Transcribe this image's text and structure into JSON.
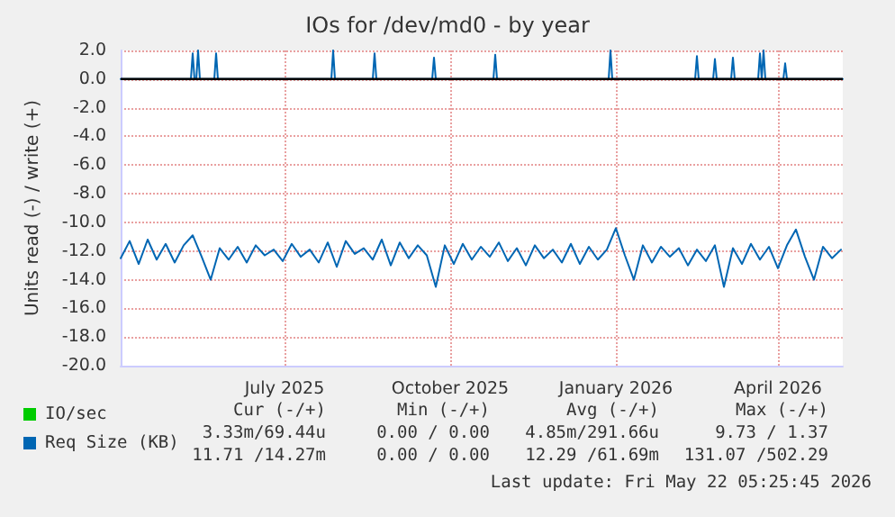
{
  "chart_data": {
    "type": "line",
    "title": "IOs for /dev/md0 - by year",
    "ylabel": "Units read (-) / write (+)",
    "xlim": [
      "2025-04-16",
      "2026-05-22"
    ],
    "xticks": [
      {
        "value": "2025-07-16",
        "label": "July 2025"
      },
      {
        "value": "2025-10-16",
        "label": "October 2025"
      },
      {
        "value": "2026-01-16",
        "label": "January 2026"
      },
      {
        "value": "2026-04-16",
        "label": "April 2026"
      }
    ],
    "ylim": [
      -20,
      2
    ],
    "yticks": [
      {
        "value": 2,
        "label": "2.0"
      },
      {
        "value": 0,
        "label": "0.0"
      },
      {
        "value": -2,
        "label": "-2.0"
      },
      {
        "value": -4,
        "label": "-4.0"
      },
      {
        "value": -6,
        "label": "-6.0"
      },
      {
        "value": -8,
        "label": "-8.0"
      },
      {
        "value": -10,
        "label": "-10.0"
      },
      {
        "value": -12,
        "label": "-12.0"
      },
      {
        "value": -14,
        "label": "-14.0"
      },
      {
        "value": -16,
        "label": "-16.0"
      },
      {
        "value": -18,
        "label": "-18.0"
      },
      {
        "value": -20,
        "label": "-20.0"
      }
    ],
    "grid": true,
    "legend": "bottom left",
    "marker": "none",
    "line_style": "solid",
    "ref_lines": [
      {
        "axis": "y",
        "value": 0,
        "color": "#000000"
      }
    ],
    "series": [
      {
        "name": "IO/sec",
        "color": "#00cc00"
      },
      {
        "name": "Req Size (KB)",
        "color": "#0066b3",
        "x": [
          "2025-04-16",
          "2025-04-21",
          "2025-04-26",
          "2025-05-01",
          "2025-05-06",
          "2025-05-11",
          "2025-05-16",
          "2025-05-21",
          "2025-05-26",
          "2025-05-31",
          "2025-06-05",
          "2025-06-10",
          "2025-06-15",
          "2025-06-20",
          "2025-06-25",
          "2025-06-30",
          "2025-07-05",
          "2025-07-10",
          "2025-07-15",
          "2025-07-20",
          "2025-07-25",
          "2025-07-30",
          "2025-08-04",
          "2025-08-09",
          "2025-08-14",
          "2025-08-19",
          "2025-08-24",
          "2025-08-29",
          "2025-09-03",
          "2025-09-08",
          "2025-09-13",
          "2025-09-18",
          "2025-09-23",
          "2025-09-28",
          "2025-10-03",
          "2025-10-08",
          "2025-10-13",
          "2025-10-18",
          "2025-10-23",
          "2025-10-28",
          "2025-11-02",
          "2025-11-07",
          "2025-11-12",
          "2025-11-17",
          "2025-11-22",
          "2025-11-27",
          "2025-12-02",
          "2025-12-07",
          "2025-12-12",
          "2025-12-17",
          "2025-12-22",
          "2025-12-27",
          "2026-01-01",
          "2026-01-06",
          "2026-01-11",
          "2026-01-16",
          "2026-01-21",
          "2026-01-26",
          "2026-01-31",
          "2026-02-05",
          "2026-02-10",
          "2026-02-15",
          "2026-02-20",
          "2026-02-25",
          "2026-03-02",
          "2026-03-07",
          "2026-03-12",
          "2026-03-17",
          "2026-03-22",
          "2026-03-27",
          "2026-04-01",
          "2026-04-06",
          "2026-04-11",
          "2026-04-16",
          "2026-04-21",
          "2026-04-26",
          "2026-05-01",
          "2026-05-06",
          "2026-05-11",
          "2026-05-16",
          "2026-05-21"
        ],
        "values": [
          -12.5,
          -11.3,
          -12.9,
          -11.2,
          -12.6,
          -11.5,
          -12.8,
          -11.6,
          -10.9,
          -12.4,
          -14.0,
          -11.8,
          -12.6,
          -11.7,
          -12.8,
          -11.6,
          -12.3,
          -11.9,
          -12.7,
          -11.5,
          -12.4,
          -11.9,
          -12.8,
          -11.4,
          -13.1,
          -11.3,
          -12.2,
          -11.8,
          -12.6,
          -11.2,
          -13.0,
          -11.4,
          -12.5,
          -11.6,
          -12.3,
          -14.5,
          -11.6,
          -12.9,
          -11.5,
          -12.6,
          -11.7,
          -12.4,
          -11.4,
          -12.7,
          -11.8,
          -13.0,
          -11.6,
          -12.5,
          -11.9,
          -12.8,
          -11.5,
          -12.9,
          -11.7,
          -12.6,
          -11.9,
          -10.4,
          -12.3,
          -14.0,
          -11.6,
          -12.8,
          -11.7,
          -12.4,
          -11.8,
          -13.0,
          -11.9,
          -12.7,
          -11.6,
          -14.5,
          -11.8,
          -12.9,
          -11.5,
          -12.6,
          -11.7,
          -13.2,
          -11.6,
          -10.5,
          -12.4,
          -14.0,
          -11.7,
          -12.5,
          -11.9
        ]
      },
      {
        "color": "#0066b3",
        "x": [
          "2025-04-16",
          "2025-05-25",
          "2025-05-26",
          "2025-05-27",
          "2025-05-28",
          "2025-05-29",
          "2025-05-30",
          "2025-06-07",
          "2025-06-08",
          "2025-06-09",
          "2025-08-11",
          "2025-08-12",
          "2025-08-13",
          "2025-09-03",
          "2025-09-04",
          "2025-09-05",
          "2025-10-06",
          "2025-10-07",
          "2025-10-08",
          "2025-11-09",
          "2025-11-10",
          "2025-11-11",
          "2026-01-12",
          "2026-01-13",
          "2026-01-14",
          "2026-03-01",
          "2026-03-02",
          "2026-03-03",
          "2026-03-11",
          "2026-03-12",
          "2026-03-13",
          "2026-03-21",
          "2026-03-22",
          "2026-03-23",
          "2026-04-05",
          "2026-04-06",
          "2026-04-07",
          "2026-04-08",
          "2026-04-09",
          "2026-04-19",
          "2026-04-20",
          "2026-04-21",
          "2026-05-22"
        ],
        "values": [
          0,
          0,
          1.8,
          0,
          0,
          2.0,
          0,
          0,
          1.8,
          0,
          0,
          2.0,
          0,
          0,
          1.8,
          0,
          0,
          1.5,
          0,
          0,
          1.7,
          0,
          0,
          2.0,
          0,
          0,
          1.6,
          0,
          0,
          1.4,
          0,
          0,
          1.5,
          0,
          0,
          1.8,
          0,
          2.0,
          0,
          0,
          1.1,
          0,
          0
        ]
      }
    ],
    "annotations": [
      "Cur (-/+)",
      "Min (-/+)",
      "Avg (-/+)",
      "Max (-/+)",
      "3.33m/69.44u",
      "0.00 / 0.00",
      "4.85m/291.66u",
      "9.73 / 1.37",
      "11.71 /14.27m",
      "0.00 / 0.00",
      "12.29 /61.69m",
      "131.07 /502.29",
      "Last update: Fri May 22 05:25:45 2026"
    ]
  }
}
